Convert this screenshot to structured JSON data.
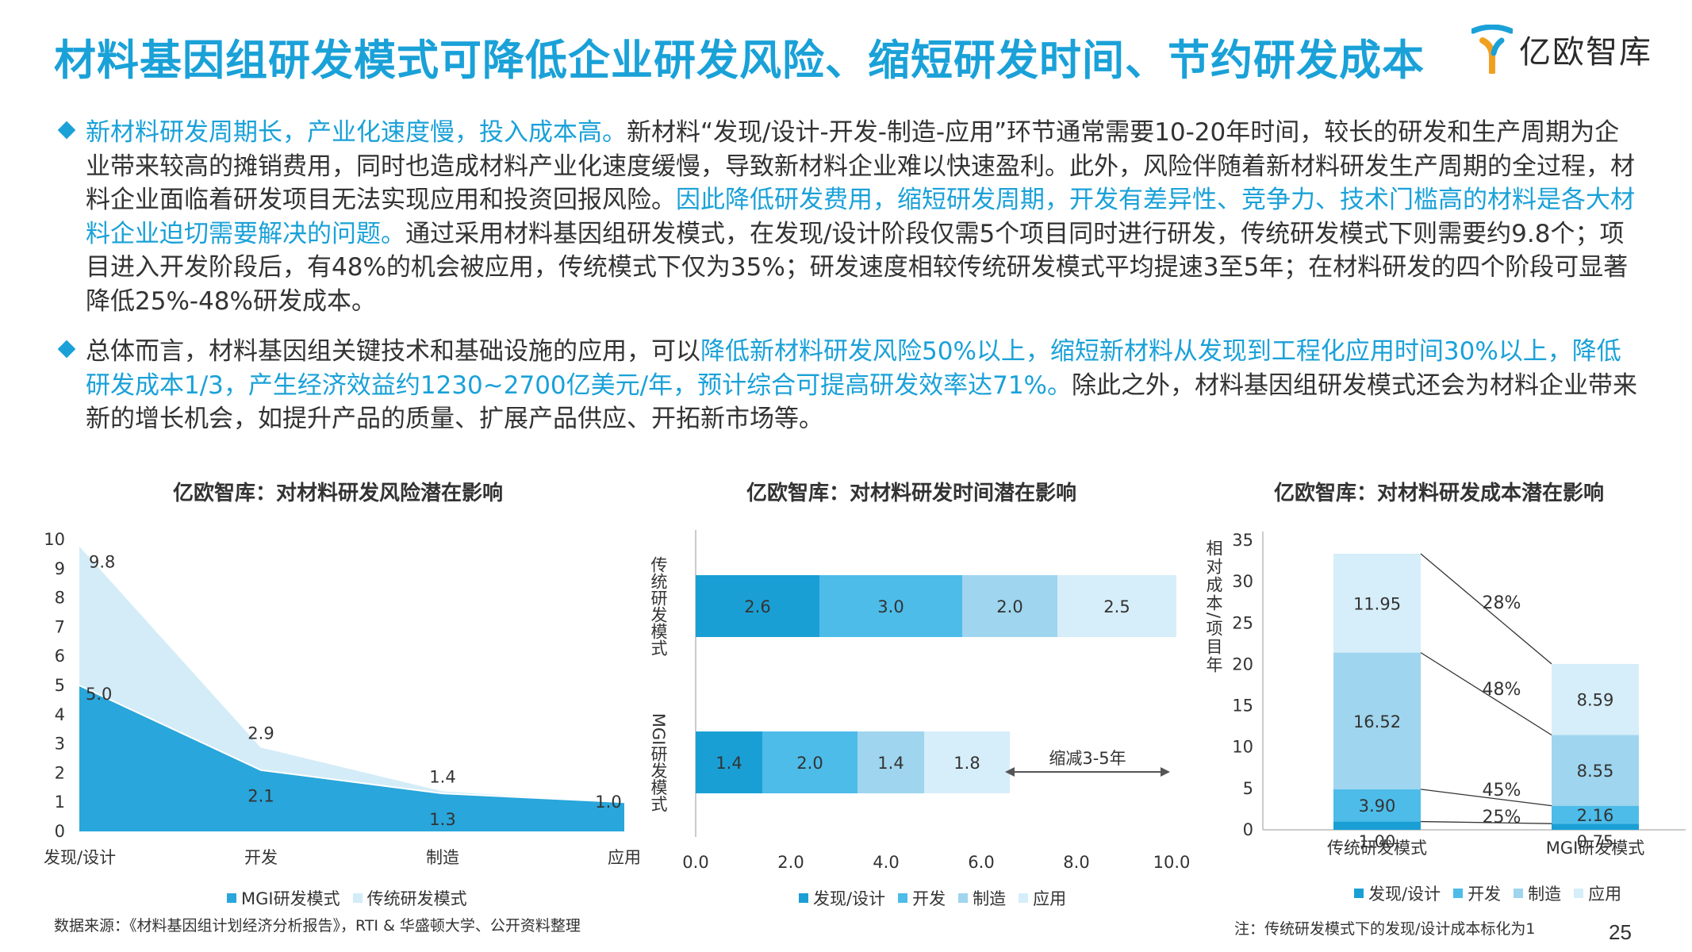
{
  "title": "材料基因组研发模式可降低企业研发风险、缩短研发时间、节约研发成本",
  "logo": {
    "text": "亿欧智库"
  },
  "paragraphs": [
    {
      "seg1": "新材料研发周期长，产业化速度慢，投入成本高。",
      "seg2": "新材料“发现/设计-开发-制造-应用”环节通常需要10-20年时间，较长的研发和生产周期为企业带来较高的摊销费用，同时也造成材料产业化速度缓慢，导致新材料企业难以快速盈利。此外，风险伴随着新材料研发生产周期的全过程，材料企业面临着研发项目无法实现应用和投资回报风险。",
      "seg3": "因此降低研发费用，缩短研发周期，开发有差异性、竞争力、技术门槛高的材料是各大材料企业迫切需要解决的问题。",
      "seg4": "通过采用材料基因组研发模式，在发现/设计阶段仅需5个项目同时进行研发，传统研发模式下则需要约9.8个；项目进入开发阶段后，有48%的机会被应用，传统模式下仅为35%；研发速度相较传统研发模式平均提速3至5年；在材料研发的四个阶段可显著降低25%-48%研发成本。"
    },
    {
      "seg1": "总体而言，材料基因组关键技术和基础设施的应用，可以",
      "seg2": "降低新材料研发风险50%以上，缩短新材料从发现到工程化应用时间30%以上，降低研发成本1/3，产生经济效益约1230~2700亿美元/年，预计综合可提高研发效率达71%。",
      "seg3": "除此之外，材料基因组研发模式还会为材料企业带来新的增长机会，如提升产品的质量、扩展产品供应、开拓新市场等。"
    }
  ],
  "colors": {
    "c1": "#1a9fd5",
    "c2": "#4dbce9",
    "c3": "#9fd5ee",
    "c4": "#d6eef9",
    "mgi": "#29a6db",
    "trad": "#d3ecf8"
  },
  "chart_data": [
    {
      "type": "area",
      "title": "亿欧智库：对材料研发风险潜在影响",
      "categories": [
        "发现/设计",
        "开发",
        "制造",
        "应用"
      ],
      "ylim": [
        0,
        10
      ],
      "yticks": [
        "0",
        "1",
        "2",
        "3",
        "4",
        "5",
        "6",
        "7",
        "8",
        "9",
        "10"
      ],
      "series": [
        {
          "name": "MGI研发模式",
          "values": [
            5.0,
            2.1,
            1.3,
            1.0
          ],
          "labels": [
            "5.0",
            "2.1",
            "1.3",
            "1.0"
          ]
        },
        {
          "name": "传统研发模式",
          "values": [
            9.8,
            2.9,
            1.4,
            1.0
          ],
          "labels": [
            "9.8",
            "2.9",
            "1.4",
            "1.0"
          ]
        }
      ]
    },
    {
      "type": "bar",
      "orientation": "horizontal-stacked",
      "title": "亿欧智库：对材料研发时间潜在影响",
      "categories": [
        "传统研发模式",
        "MGI研发模式"
      ],
      "xlim": [
        0,
        10
      ],
      "xticks": [
        "0.0",
        "2.0",
        "4.0",
        "6.0",
        "8.0",
        "10.0"
      ],
      "series": [
        {
          "name": "发现/设计",
          "values": [
            2.6,
            1.4
          ],
          "labels": [
            "2.6",
            "1.4"
          ]
        },
        {
          "name": "开发",
          "values": [
            3.0,
            2.0
          ],
          "labels": [
            "3.0",
            "2.0"
          ]
        },
        {
          "name": "制造",
          "values": [
            2.0,
            1.4
          ],
          "labels": [
            "2.0",
            "1.4"
          ]
        },
        {
          "name": "应用",
          "values": [
            2.5,
            1.8
          ],
          "labels": [
            "2.5",
            "1.8"
          ]
        }
      ],
      "annotation": "缩减3-5年"
    },
    {
      "type": "bar",
      "orientation": "vertical-stacked",
      "title": "亿欧智库：对材料研发成本潜在影响",
      "ylabel": "相对成本/项目年",
      "categories": [
        "传统研发模式",
        "MGI研发模式"
      ],
      "ylim": [
        0,
        35
      ],
      "yticks": [
        "0",
        "5",
        "10",
        "15",
        "20",
        "25",
        "30",
        "35"
      ],
      "series": [
        {
          "name": "发现/设计",
          "values": [
            1.0,
            0.75
          ],
          "labels": [
            "1.00",
            "0.75"
          ]
        },
        {
          "name": "开发",
          "values": [
            3.9,
            2.16
          ],
          "labels": [
            "3.90",
            "2.16"
          ]
        },
        {
          "name": "制造",
          "values": [
            16.52,
            8.55
          ],
          "labels": [
            "16.52",
            "8.55"
          ]
        },
        {
          "name": "应用",
          "values": [
            11.95,
            8.59
          ],
          "labels": [
            "11.95",
            "8.59"
          ]
        }
      ],
      "reductions": [
        "25%",
        "45%",
        "48%",
        "28%"
      ]
    }
  ],
  "source": "数据来源：《材料基因组计划经济分析报告》，RTI & 华盛顿大学、公开资料整理",
  "note": "注：传统研发模式下的发现/设计成本标化为1",
  "page_number": "25"
}
